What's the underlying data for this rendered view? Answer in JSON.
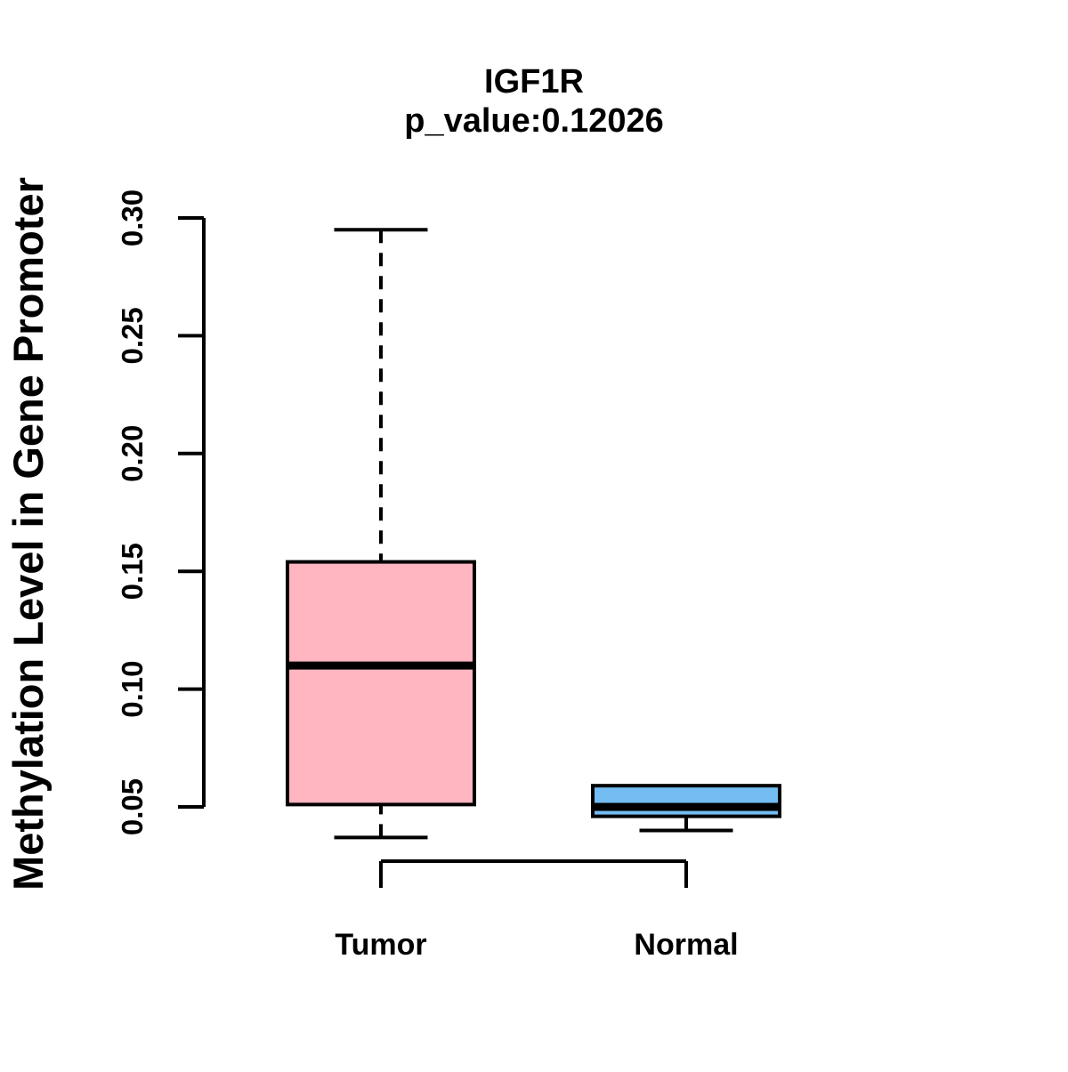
{
  "chart_data": {
    "type": "boxplot",
    "title": "IGF1R",
    "subtitle": "p_value:0.12026",
    "gene": "IGF1R",
    "p_value": 0.12026,
    "ylabel": "Methylation Level in Gene Promoter",
    "xlabel": "",
    "ylim": [
      0.05,
      0.3
    ],
    "y_ticks": [
      "0.05",
      "0.10",
      "0.15",
      "0.20",
      "0.25",
      "0.30"
    ],
    "grid": "off",
    "legend": "none",
    "categories": [
      "Tumor",
      "Normal"
    ],
    "series": [
      {
        "name": "Tumor",
        "color": "#FFB6C1",
        "whisker_low": 0.037,
        "q1": 0.051,
        "median": 0.11,
        "q3": 0.154,
        "whisker_high": 0.295
      },
      {
        "name": "Normal",
        "color": "#73BDF2",
        "whisker_low": 0.04,
        "q1": 0.046,
        "median": 0.05,
        "q3": 0.059,
        "whisker_high": 0.059
      }
    ]
  }
}
